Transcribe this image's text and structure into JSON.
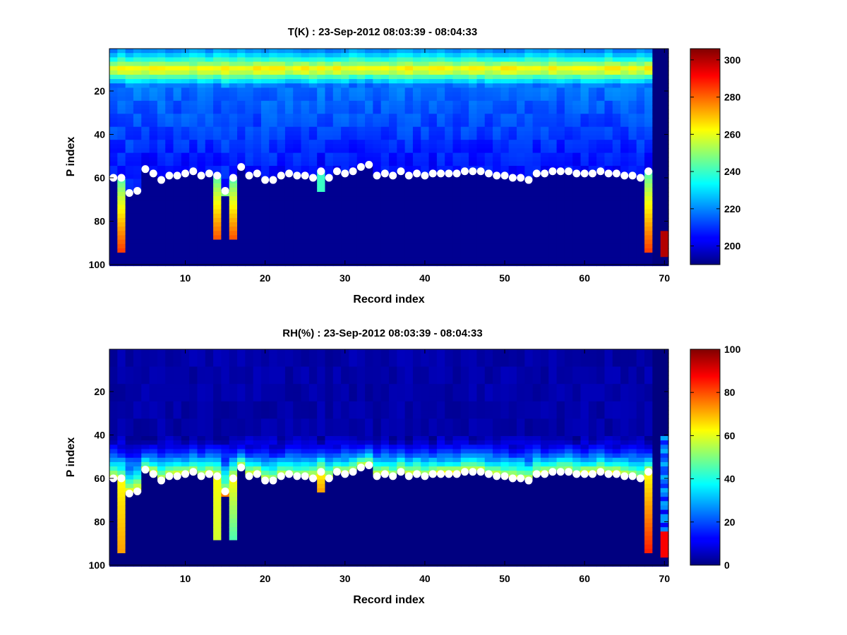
{
  "chart_data": [
    {
      "type": "heatmap",
      "title": "T(K) : 23-Sep-2012 08:03:39 - 08:04:33",
      "xlabel": "Record index",
      "ylabel": "P index",
      "xlim": [
        0.5,
        70.5
      ],
      "ylim": [
        100,
        0.5
      ],
      "y_reversed": true,
      "xticks": [
        10,
        20,
        30,
        40,
        50,
        60,
        70
      ],
      "yticks": [
        20,
        40,
        60,
        80,
        100
      ],
      "colorbar": {
        "min": 190,
        "max": 306,
        "ticks": [
          200,
          220,
          240,
          260,
          280,
          300
        ],
        "colormap": "jet"
      },
      "variable": "T",
      "profile": {
        "surface_value": 260,
        "peak_level": 10,
        "peak_value": 265,
        "mid_value": 218,
        "near_ground_value": 205,
        "ground_value": 192,
        "invalid_value": 190
      },
      "markers_label": "surface P index",
      "marker_color": "#ffffff"
    },
    {
      "type": "heatmap",
      "title": "RH(%) : 23-Sep-2012 08:03:39 - 08:04:33",
      "xlabel": "Record index",
      "ylabel": "P index",
      "xlim": [
        0.5,
        70.5
      ],
      "ylim": [
        100,
        0.5
      ],
      "y_reversed": true,
      "xticks": [
        10,
        20,
        30,
        40,
        50,
        60,
        70
      ],
      "yticks": [
        20,
        40,
        60,
        80,
        100
      ],
      "colorbar": {
        "min": 0,
        "max": 100,
        "ticks": [
          0,
          20,
          40,
          60,
          80,
          100
        ],
        "colormap": "jet"
      },
      "variable": "RH",
      "profile": {
        "upper_value": 4,
        "band_start": 40,
        "band_value": 62,
        "invalid_value": 0
      },
      "markers_label": "surface P index",
      "marker_color": "#ffffff"
    }
  ],
  "records": {
    "x": [
      1,
      2,
      3,
      4,
      5,
      6,
      7,
      8,
      9,
      10,
      11,
      12,
      13,
      14,
      15,
      16,
      17,
      18,
      19,
      20,
      21,
      22,
      23,
      24,
      25,
      26,
      27,
      28,
      29,
      30,
      31,
      32,
      33,
      34,
      35,
      36,
      37,
      38,
      39,
      40,
      41,
      42,
      43,
      44,
      45,
      46,
      47,
      48,
      49,
      50,
      51,
      52,
      53,
      54,
      55,
      56,
      57,
      58,
      59,
      60,
      61,
      62,
      63,
      64,
      65,
      66,
      67,
      68,
      69,
      70
    ],
    "surface_p_index": [
      60,
      60,
      67,
      66,
      56,
      58,
      61,
      59,
      59,
      58,
      57,
      59,
      58,
      59,
      66,
      60,
      55,
      59,
      58,
      61,
      61,
      59,
      58,
      59,
      59,
      60,
      57,
      60,
      57,
      58,
      57,
      55,
      54,
      59,
      58,
      59,
      57,
      59,
      58,
      59,
      58,
      58,
      58,
      58,
      57,
      57,
      57,
      58,
      59,
      59,
      60,
      60,
      61,
      58,
      58,
      57,
      57,
      57,
      58,
      58,
      58,
      57,
      58,
      58,
      59,
      59,
      60,
      57,
      null,
      null
    ],
    "t_extension_to": [
      null,
      94,
      null,
      null,
      null,
      null,
      null,
      null,
      null,
      null,
      null,
      null,
      null,
      88,
      68,
      88,
      null,
      null,
      null,
      null,
      null,
      null,
      null,
      null,
      null,
      null,
      66,
      null,
      null,
      null,
      null,
      null,
      null,
      null,
      null,
      null,
      null,
      null,
      null,
      null,
      null,
      null,
      null,
      null,
      null,
      null,
      null,
      null,
      null,
      null,
      null,
      null,
      null,
      null,
      null,
      null,
      null,
      null,
      null,
      null,
      null,
      null,
      null,
      null,
      null,
      null,
      null,
      94,
      null,
      97
    ],
    "t_extension_end_value": [
      null,
      285,
      null,
      null,
      null,
      null,
      null,
      null,
      null,
      null,
      null,
      null,
      null,
      282,
      250,
      282,
      null,
      null,
      null,
      null,
      null,
      null,
      null,
      null,
      null,
      null,
      240,
      null,
      null,
      null,
      null,
      null,
      null,
      null,
      null,
      null,
      null,
      null,
      null,
      null,
      null,
      null,
      null,
      null,
      null,
      null,
      null,
      null,
      null,
      null,
      null,
      null,
      null,
      null,
      null,
      null,
      null,
      null,
      null,
      null,
      null,
      null,
      null,
      null,
      null,
      null,
      null,
      285,
      null,
      300
    ],
    "rh_extension_to": [
      null,
      94,
      null,
      null,
      null,
      null,
      null,
      null,
      null,
      null,
      null,
      null,
      null,
      88,
      68,
      88,
      null,
      null,
      null,
      null,
      null,
      null,
      null,
      null,
      null,
      null,
      66,
      null,
      null,
      null,
      null,
      null,
      null,
      null,
      null,
      null,
      null,
      null,
      null,
      null,
      null,
      null,
      null,
      null,
      null,
      null,
      null,
      null,
      null,
      null,
      null,
      null,
      null,
      null,
      null,
      null,
      null,
      null,
      null,
      null,
      null,
      null,
      null,
      null,
      null,
      null,
      null,
      94,
      null,
      97
    ],
    "rh_extension_end_value": [
      null,
      72,
      null,
      null,
      null,
      null,
      null,
      null,
      null,
      null,
      null,
      null,
      null,
      58,
      80,
      45,
      null,
      null,
      null,
      null,
      null,
      null,
      null,
      null,
      null,
      null,
      72,
      null,
      null,
      null,
      null,
      null,
      null,
      null,
      null,
      null,
      null,
      null,
      null,
      null,
      null,
      null,
      null,
      null,
      null,
      null,
      null,
      null,
      null,
      null,
      null,
      null,
      null,
      null,
      null,
      null,
      null,
      null,
      null,
      null,
      null,
      null,
      null,
      null,
      null,
      null,
      null,
      85,
      null,
      88
    ]
  }
}
